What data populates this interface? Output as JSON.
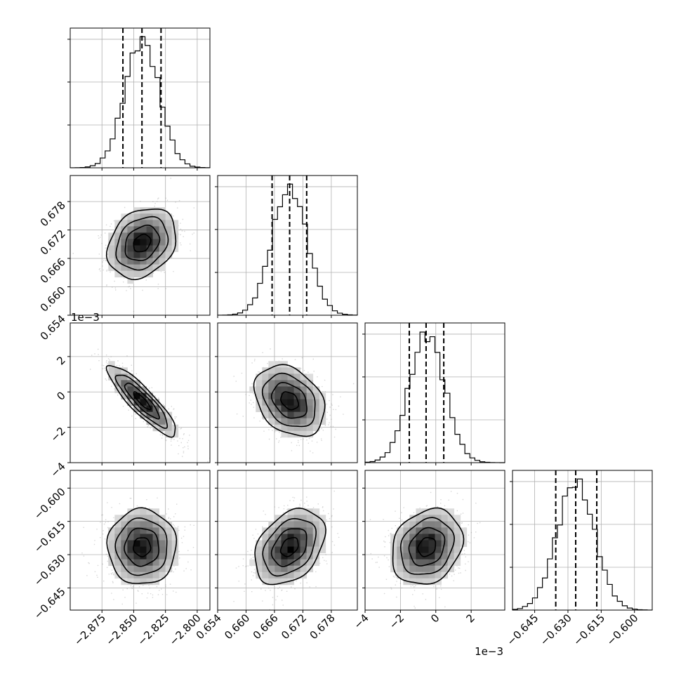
{
  "chart_data": {
    "type": "corner",
    "title": "",
    "grid": true,
    "parameters": [
      {
        "index": 0,
        "ticks": [
          -2.875,
          -2.85,
          -2.825,
          -2.8
        ],
        "tick_labels": [
          "−2.875",
          "−2.850",
          "−2.825",
          "−2.800"
        ],
        "range": [
          -2.9,
          -2.79
        ],
        "quantiles": [
          -2.8585,
          -2.8435,
          -2.8285
        ],
        "mean": -2.8435,
        "sd": 0.0135,
        "offset_label": ""
      },
      {
        "index": 1,
        "ticks": [
          0.654,
          0.66,
          0.666,
          0.672,
          0.678
        ],
        "tick_labels": [
          "0.654",
          "0.660",
          "0.666",
          "0.672",
          "0.678"
        ],
        "range": [
          0.654,
          0.6835
        ],
        "quantiles": [
          0.6655,
          0.6692,
          0.6728
        ],
        "mean": 0.6692,
        "sd": 0.0037,
        "offset_label": ""
      },
      {
        "index": 2,
        "ticks": [
          -4,
          -2,
          0,
          2
        ],
        "tick_labels": [
          "−4",
          "−2",
          "0",
          "2"
        ],
        "range": [
          -4.0,
          3.9
        ],
        "quantiles": [
          -1.5,
          -0.55,
          0.45
        ],
        "mean": -0.5,
        "sd": 1.0,
        "offset_label": "1e−3"
      },
      {
        "index": 3,
        "ticks": [
          -0.645,
          -0.63,
          -0.615,
          -0.6
        ],
        "tick_labels": [
          "−0.645",
          "−0.630",
          "−0.615",
          "−0.600"
        ],
        "range": [
          -0.655,
          -0.592
        ],
        "quantiles": [
          -0.6355,
          -0.6265,
          -0.617
        ],
        "mean": -0.6265,
        "sd": 0.0085,
        "offset_label": ""
      }
    ],
    "correlations": {
      "1-0": 0.25,
      "2-0": -0.88,
      "2-1": -0.3,
      "3-0": 0.0,
      "3-1": 0.35,
      "3-2": 0.2
    },
    "hist_peak_height": 0.92,
    "contour_levels_sigma": [
      0.5,
      1.0,
      1.5,
      2.0
    ],
    "axis_offset_labels": {
      "row_2_y": "1e−3",
      "col_2_x": "1e−3"
    }
  }
}
